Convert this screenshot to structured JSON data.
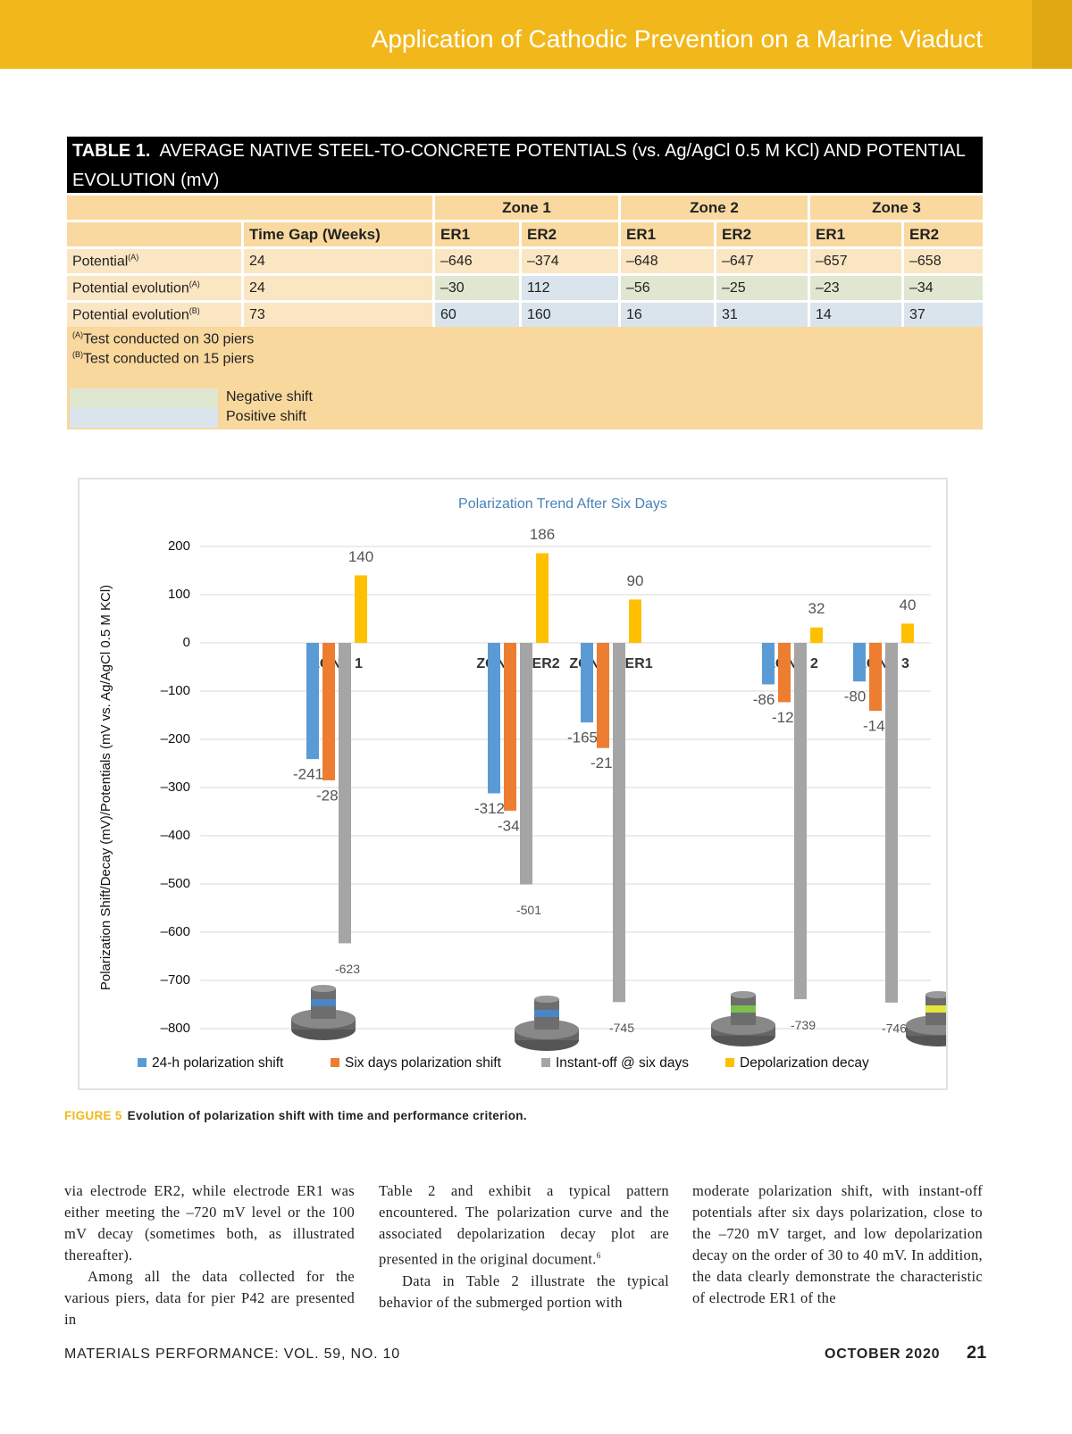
{
  "header": {
    "title": "Application of Cathodic Prevention on a Marine Viaduct"
  },
  "table": {
    "number": "TABLE 1.",
    "title": "AVERAGE NATIVE STEEL-TO-CONCRETE POTENTIALS (vs. Ag/AgCl 0.5 M KCl) AND POTENTIAL EVOLUTION (mV)",
    "zones": [
      "Zone 1",
      "Zone 2",
      "Zone 3"
    ],
    "columns": [
      "Time Gap (Weeks)",
      "ER1",
      "ER2",
      "ER1",
      "ER2",
      "ER1",
      "ER2"
    ],
    "rows": [
      {
        "label": "Potential",
        "sup": "(A)",
        "shaded": false,
        "cells": [
          "24",
          "–646",
          "–374",
          "–648",
          "–647",
          "–657",
          "–658"
        ]
      },
      {
        "label": "Potential evolution",
        "sup": "(A)",
        "shaded": true,
        "cells": [
          "24",
          "–30",
          "112",
          "–56",
          "–25",
          "–23",
          "–34"
        ]
      },
      {
        "label": "Potential evolution",
        "sup": "(B)",
        "shaded": true,
        "cells": [
          "73",
          "60",
          "160",
          "16",
          "31",
          "14",
          "37"
        ]
      }
    ],
    "notes": [
      {
        "mark": "(A)",
        "text": "Test conducted on 30 piers"
      },
      {
        "mark": "(B)",
        "text": "Test conducted on 15 piers"
      }
    ],
    "legend": [
      {
        "label": "Negative shift",
        "color": "#dfe7d0"
      },
      {
        "label": "Positive shift",
        "color": "#d9e4ec"
      }
    ]
  },
  "chart_data": {
    "type": "bar",
    "title": "Polarization Trend After Six Days",
    "y_label": "Polarization Shift/Decay (mV)/Potentials (mV vs. Ag/AgCl 0.5 M KCl)",
    "categories": [
      "ZONE 1",
      "ZONE 1 ER2",
      "ZONE 1 ER1",
      "ZONE 2",
      "ZONE 3"
    ],
    "series": [
      {
        "name": "24-h polarization shift",
        "color": "#5b9bd5",
        "values": [
          -241,
          -312,
          -165,
          -86,
          -80
        ]
      },
      {
        "name": "Six days polarization shift",
        "color": "#ed7d31",
        "values": [
          -285,
          -348,
          -218,
          -123,
          -141
        ]
      },
      {
        "name": "Instant-off @ six days",
        "color": "#a5a5a5",
        "values": [
          -623,
          -501,
          -745,
          -739,
          -746
        ]
      },
      {
        "name": "Depolarization decay",
        "color": "#ffc000",
        "values": [
          140,
          186,
          90,
          32,
          40
        ]
      }
    ],
    "ylim": [
      -850,
      230
    ],
    "yticks": [
      200,
      100,
      0,
      {
        "value": -100,
        "label": "–100"
      },
      {
        "value": -200,
        "label": "–200"
      },
      {
        "value": -300,
        "label": "–300"
      },
      {
        "value": -400,
        "label": "–400"
      },
      {
        "value": -500,
        "label": "–500"
      },
      {
        "value": -600,
        "label": "–600"
      },
      {
        "value": -700,
        "label": "–700"
      },
      {
        "value": -800,
        "label": "–800"
      }
    ],
    "grid": true,
    "legend": "bottom"
  },
  "figure_caption": {
    "number": "FIGURE 5",
    "text": "Evolution of polarization shift with time and performance criterion."
  },
  "body": {
    "columns": [
      {
        "paragraphs": [
          {
            "text": "via electrode ER2, while electrode ER1 was either meeting the –720 mV level or the 100 mV decay (sometimes both, as illustrated thereafter)."
          },
          {
            "text": "Among all the data collected for the various piers, data for pier P42 are presented in"
          }
        ]
      },
      {
        "paragraphs": [
          {
            "text": "Table 2 and exhibit a typical pattern encountered. The polarization curve and the associated depolarization decay plot are presented in the original document.",
            "sup": "6"
          },
          {
            "text": "Data in Table 2 illustrate the typical behavior of the submerged portion with"
          }
        ]
      },
      {
        "paragraphs": [
          {
            "text": "moderate polarization shift, with instant-off potentials after six days polarization, close to the –720 mV target, and low depolarization decay on the order of 30 to 40 mV. In addition, the data clearly demonstrate the characteristic of electrode ER1 of the"
          }
        ]
      }
    ]
  },
  "footer": {
    "journal": "MATERIALS PERFORMANCE: VOL. 59, NO. 10",
    "date": "OCTOBER 2020",
    "page": "21"
  }
}
